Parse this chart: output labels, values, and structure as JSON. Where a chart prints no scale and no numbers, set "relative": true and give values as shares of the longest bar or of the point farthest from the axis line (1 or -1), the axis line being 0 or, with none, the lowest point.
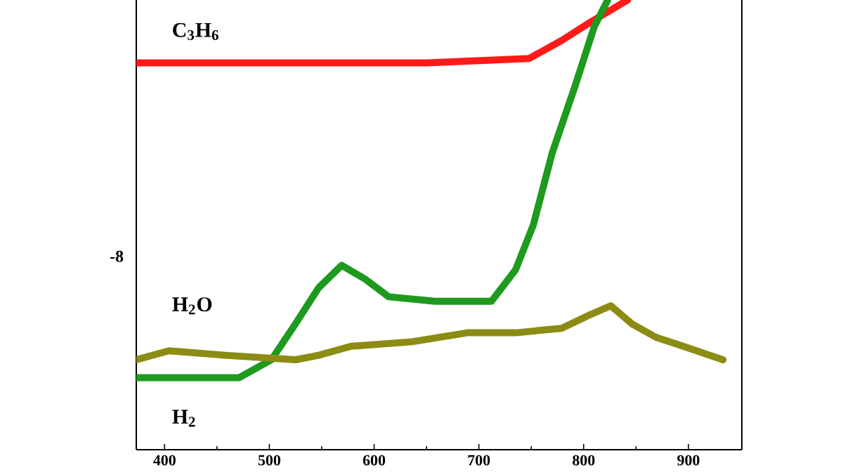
{
  "chart_data": {
    "type": "line",
    "relative": true,
    "xlim": [
      373,
      951
    ],
    "xticks": [
      400,
      500,
      600,
      700,
      800,
      900
    ],
    "annotations": [
      "-8"
    ],
    "series": [
      {
        "name": "C$_{3}$H$_{6}$",
        "color": "#ff1a1a",
        "x": [
          373,
          450,
          550,
          650,
          748,
          779,
          806,
          842
        ],
        "values": [
          0.86,
          0.86,
          0.86,
          0.86,
          0.87,
          0.91,
          0.95,
          1.0
        ]
      },
      {
        "name": "H$_{2}$",
        "color": "#1e9a1e",
        "x": [
          373,
          471,
          502,
          525,
          547,
          569,
          591,
          614,
          658,
          712,
          735,
          752,
          770,
          792,
          810,
          823
        ],
        "values": [
          0.16,
          0.16,
          0.2,
          0.28,
          0.36,
          0.41,
          0.38,
          0.34,
          0.33,
          0.33,
          0.4,
          0.5,
          0.66,
          0.81,
          0.94,
          1.0
        ]
      },
      {
        "name": "H$_{2}$O",
        "color": "#8c8c14",
        "x": [
          373,
          404,
          458,
          525,
          547,
          578,
          636,
          689,
          735,
          779,
          806,
          826,
          846,
          869,
          895,
          933
        ],
        "values": [
          0.2,
          0.22,
          0.21,
          0.2,
          0.21,
          0.23,
          0.24,
          0.26,
          0.26,
          0.27,
          0.3,
          0.32,
          0.28,
          0.25,
          0.23,
          0.2
        ]
      }
    ]
  }
}
